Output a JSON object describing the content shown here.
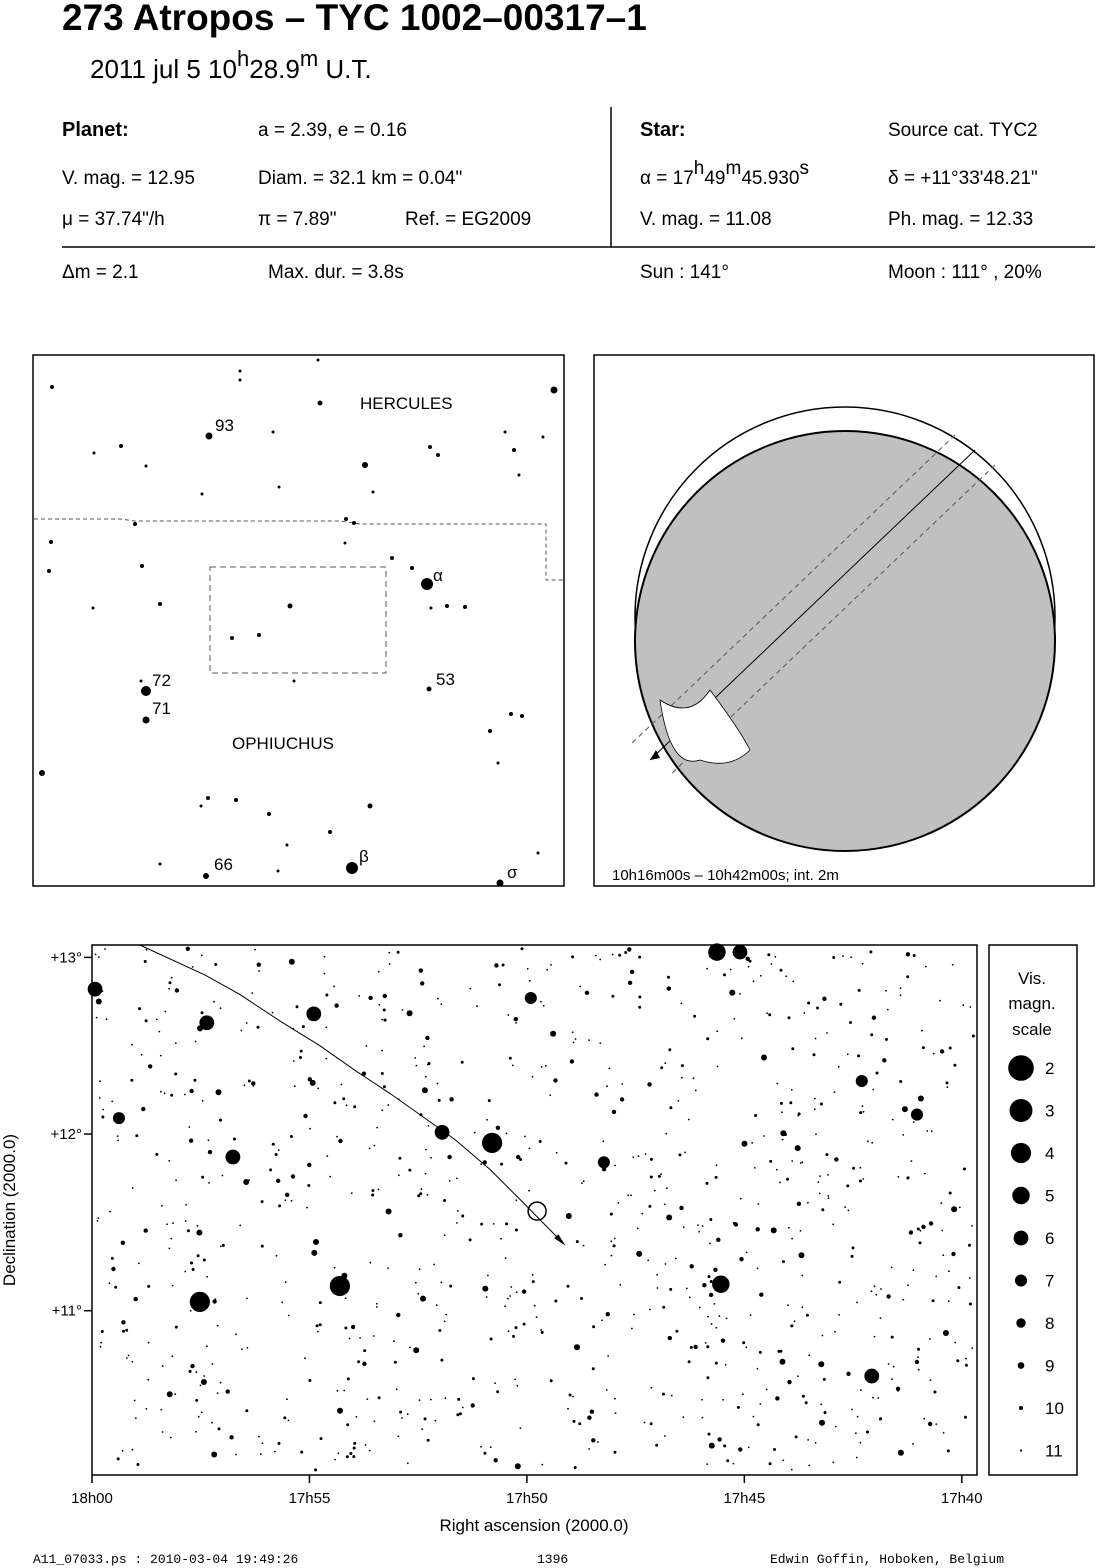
{
  "header": {
    "title": "273 Atropos  –  TYC 1002–00317–1",
    "date": [
      "2011 jul  5  10",
      "h",
      "28.9",
      "m",
      " U.T."
    ]
  },
  "info": {
    "planet_label": "Planet:",
    "orbit": "a = 2.39, e = 0.16",
    "vmag": "V. mag. = 12.95",
    "diam": "Diam. = 32.1 km = 0.04\"",
    "mu": "μ =  37.74\"/h",
    "parallax": "π =  7.89\"",
    "ref": "Ref. = EG2009",
    "star_label": "Star:",
    "source": "Source cat.  TYC2",
    "alpha": [
      "α = 17",
      "h",
      "49",
      "m",
      "45.930",
      "s"
    ],
    "delta": "δ = +11°33'48.21\"",
    "star_vmag": "V. mag. = 11.08",
    "star_phmag": "Ph. mag. = 12.33",
    "dm": "Δm = 2.1",
    "maxdur": "Max. dur. = 3.8s",
    "sun": "Sun : 141°",
    "moon": "Moon : 111° , 20%"
  },
  "finder": {
    "labels": [
      "HERCULES",
      "OPHIUCHUS",
      "93",
      "α",
      "72",
      "71",
      "53",
      "66",
      "β",
      "σ"
    ]
  },
  "globe": {
    "caption": "10h16m00s – 10h42m00s; int.  2m"
  },
  "star_chart": {
    "xlabel": "Right ascension (2000.0)",
    "ylabel": "Declination (2000.0)",
    "xlim": [
      60,
      39.65
    ],
    "ylim": [
      10.07,
      13.07
    ],
    "xticks": [
      {
        "value": 60,
        "label": "18h00"
      },
      {
        "value": 55,
        "label": "17h55"
      },
      {
        "value": 50,
        "label": "17h50"
      },
      {
        "value": 45,
        "label": "17h45"
      },
      {
        "value": 40,
        "label": "17h40"
      }
    ],
    "yticks": [
      {
        "value": 13,
        "label": "+13°"
      },
      {
        "value": 12,
        "label": "+12°"
      },
      {
        "value": 11,
        "label": "+11°"
      }
    ],
    "stars": {
      "ra": [
        45.63,
        45.1,
        50.8,
        54.3,
        57.52,
        45.54,
        57.36,
        51.95,
        42.07,
        59.93,
        49.91,
        54.9,
        59.38,
        56.76,
        48.23,
        42.3,
        41.03
      ],
      "dec": [
        13.03,
        13.03,
        11.95,
        11.14,
        11.05,
        11.15,
        12.63,
        12.01,
        10.63,
        12.82,
        12.77,
        12.68,
        12.09,
        11.87,
        11.84,
        12.3,
        12.11
      ],
      "mag": [
        5,
        6,
        4,
        4,
        4,
        5,
        6,
        6,
        6,
        6,
        7,
        6,
        7,
        6,
        7,
        7,
        7
      ]
    },
    "path": {
      "ra": [
        58.9,
        57.4,
        56.6,
        55.68,
        54.76,
        53.95,
        53.15,
        52.46,
        51.66,
        50.85,
        50.16,
        49.24
      ],
      "dec": [
        13.07,
        12.9,
        12.79,
        12.64,
        12.5,
        12.36,
        12.23,
        12.11,
        11.97,
        11.8,
        11.63,
        11.4
      ]
    },
    "target": {
      "ra": 49.765,
      "dec": 11.5634
    }
  },
  "legend": {
    "title": [
      "Vis.",
      "magn.",
      "scale"
    ],
    "mags": [
      2,
      3,
      4,
      5,
      6,
      7,
      8,
      9,
      10,
      11
    ]
  },
  "footer": {
    "file": "A11_07033.ps : 2010-03-04 19:49:26",
    "page": "1396",
    "author": "Edwin Goffin, Hoboken, Belgium"
  }
}
